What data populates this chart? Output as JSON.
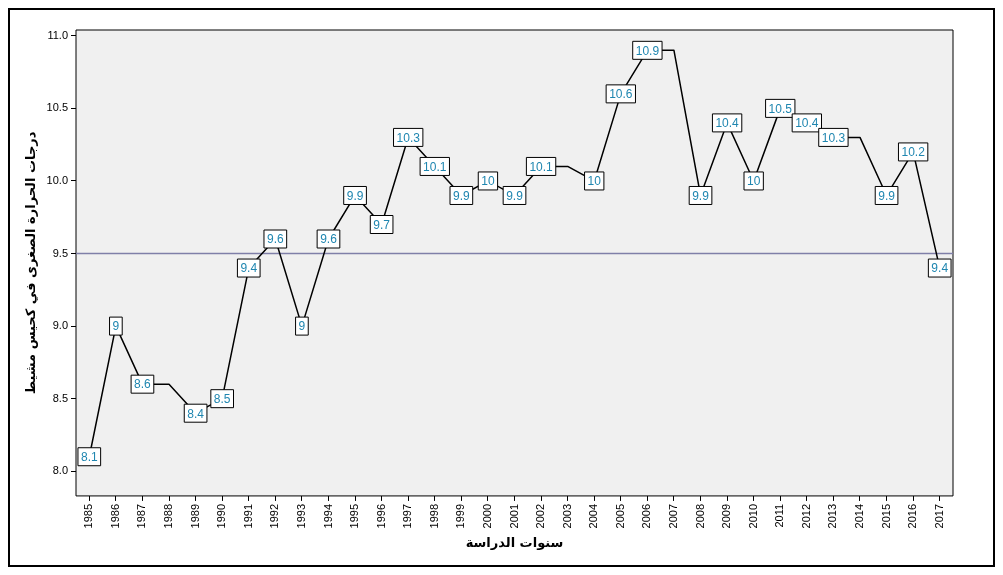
{
  "chart_data": {
    "type": "line",
    "xlabel": "سنوات الدراسة",
    "ylabel": "درجات الحرارة الصغرى في كحيس مشيط",
    "categories": [
      "1985",
      "1986",
      "1987",
      "1988",
      "1989",
      "1990",
      "1991",
      "1992",
      "1993",
      "1994",
      "1995",
      "1996",
      "1997",
      "1998",
      "1999",
      "2000",
      "2001",
      "2002",
      "2003",
      "2004",
      "2005",
      "2006",
      "2007",
      "2008",
      "2009",
      "2010",
      "2011",
      "2012",
      "2013",
      "2014",
      "2015",
      "2016",
      "2017"
    ],
    "values": [
      8.1,
      9,
      8.6,
      8.6,
      8.4,
      8.5,
      9.4,
      9.6,
      9,
      9.6,
      9.9,
      9.7,
      10.3,
      10.1,
      9.9,
      10,
      9.9,
      10.1,
      10.1,
      10,
      10.6,
      10.9,
      10.9,
      9.9,
      10.4,
      10,
      10.5,
      10.4,
      10.3,
      10.3,
      9.9,
      10.2,
      9.4
    ],
    "value_labels": [
      "8.1",
      "9",
      "8.6",
      null,
      "8.4",
      "8.5",
      "9.4",
      "9.6",
      "9",
      "9.6",
      "9.9",
      "9.7",
      "10.3",
      "10.1",
      "9.9",
      "10",
      "9.9",
      "10.1",
      null,
      "10",
      "10.6",
      "10.9",
      null,
      "9.9",
      "10.4",
      "10",
      "10.5",
      "10.4",
      "10.3",
      null,
      "9.9",
      "10.2",
      "9.4"
    ],
    "color": "#000000",
    "marker": "square",
    "line_style": "solid",
    "ylim": [
      7.83,
      11.04
    ],
    "yticks": [
      {
        "value": 8,
        "label": "8.0"
      },
      {
        "value": 8.5,
        "label": "8.5"
      },
      {
        "value": 9,
        "label": "9.0"
      },
      {
        "value": 9.5,
        "label": "9.5"
      },
      {
        "value": 10,
        "label": "10.0"
      },
      {
        "value": 10.5,
        "label": "10.5"
      },
      {
        "value": 11,
        "label": "11.0"
      }
    ],
    "ref_lines": [
      {
        "axis": "y",
        "value": 9.5,
        "color": "#7f7fa8"
      }
    ]
  }
}
